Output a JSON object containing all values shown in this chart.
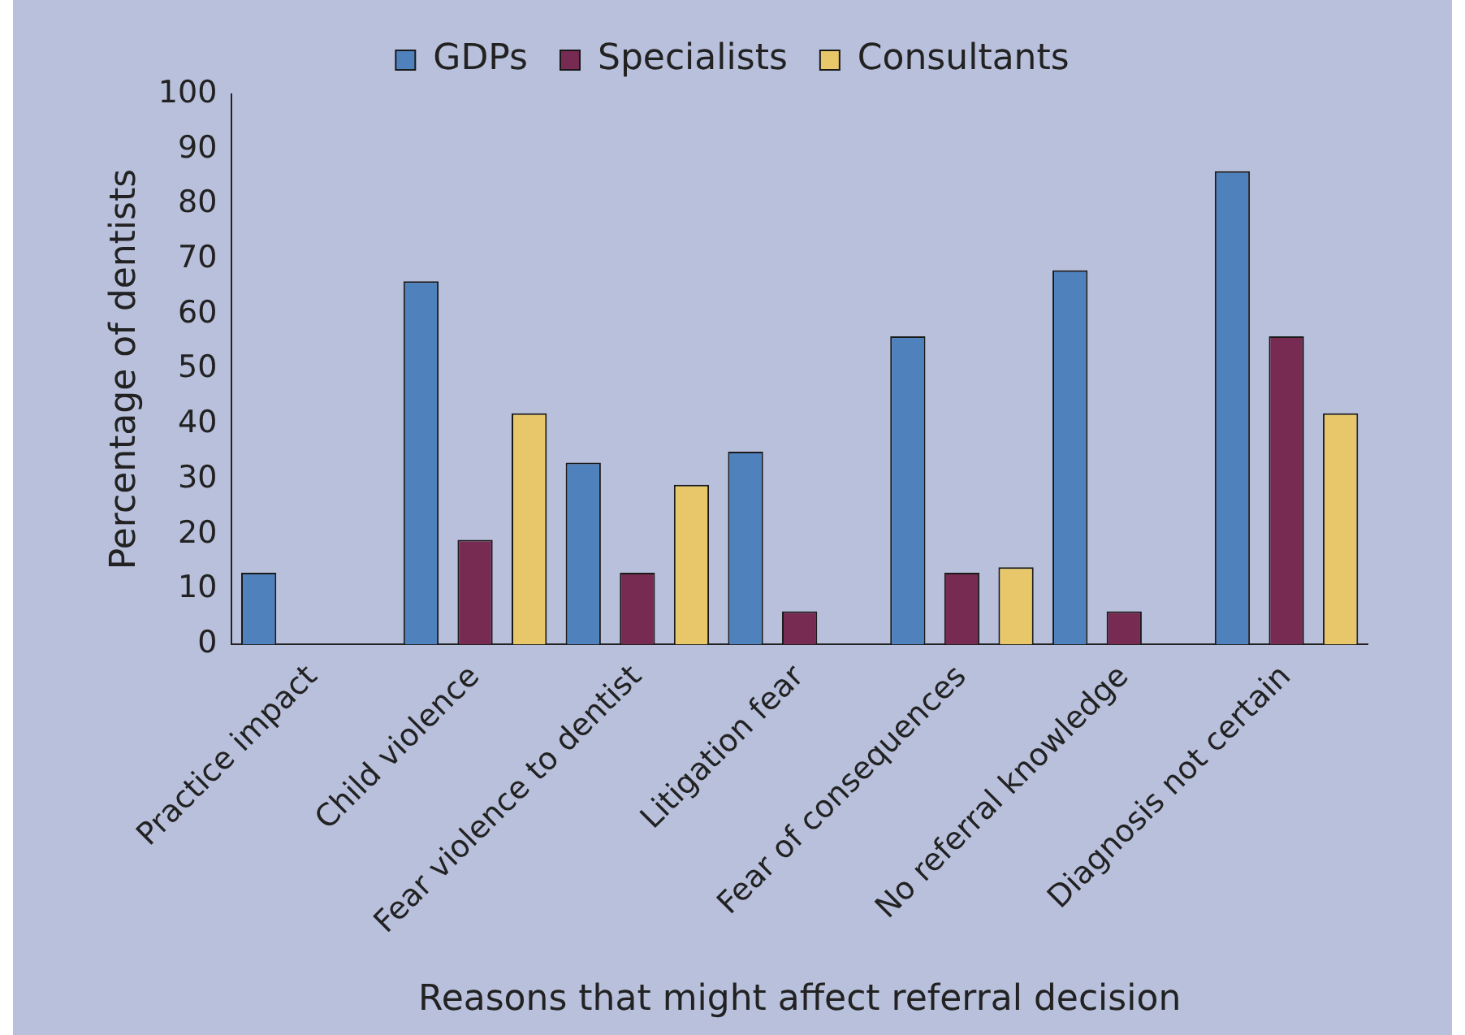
{
  "chart_data": {
    "type": "bar",
    "xlabel": "Reasons that might affect referral decision",
    "ylabel": "Percentage of dentists",
    "categories": [
      "Practice impact",
      "Child violence",
      "Fear violence to dentist",
      "Litigation fear",
      "Fear of consequences",
      "No referral knowledge",
      "Diagnosis not certain"
    ],
    "series": [
      {
        "name": "GDPs",
        "color": "#4f81bd",
        "values": [
          13,
          66,
          33,
          35,
          56,
          68,
          86
        ]
      },
      {
        "name": "Specialists",
        "color": "#772a52",
        "values": [
          0,
          19,
          13,
          6,
          13,
          6,
          56
        ]
      },
      {
        "name": "Consultants",
        "color": "#e8c76a",
        "values": [
          0,
          42,
          29,
          0,
          14,
          0,
          42
        ]
      }
    ],
    "ylim": [
      0,
      100
    ],
    "yticks": [
      0,
      10,
      20,
      30,
      40,
      50,
      60,
      70,
      80,
      90,
      100
    ],
    "grid": false,
    "legend": "top"
  }
}
